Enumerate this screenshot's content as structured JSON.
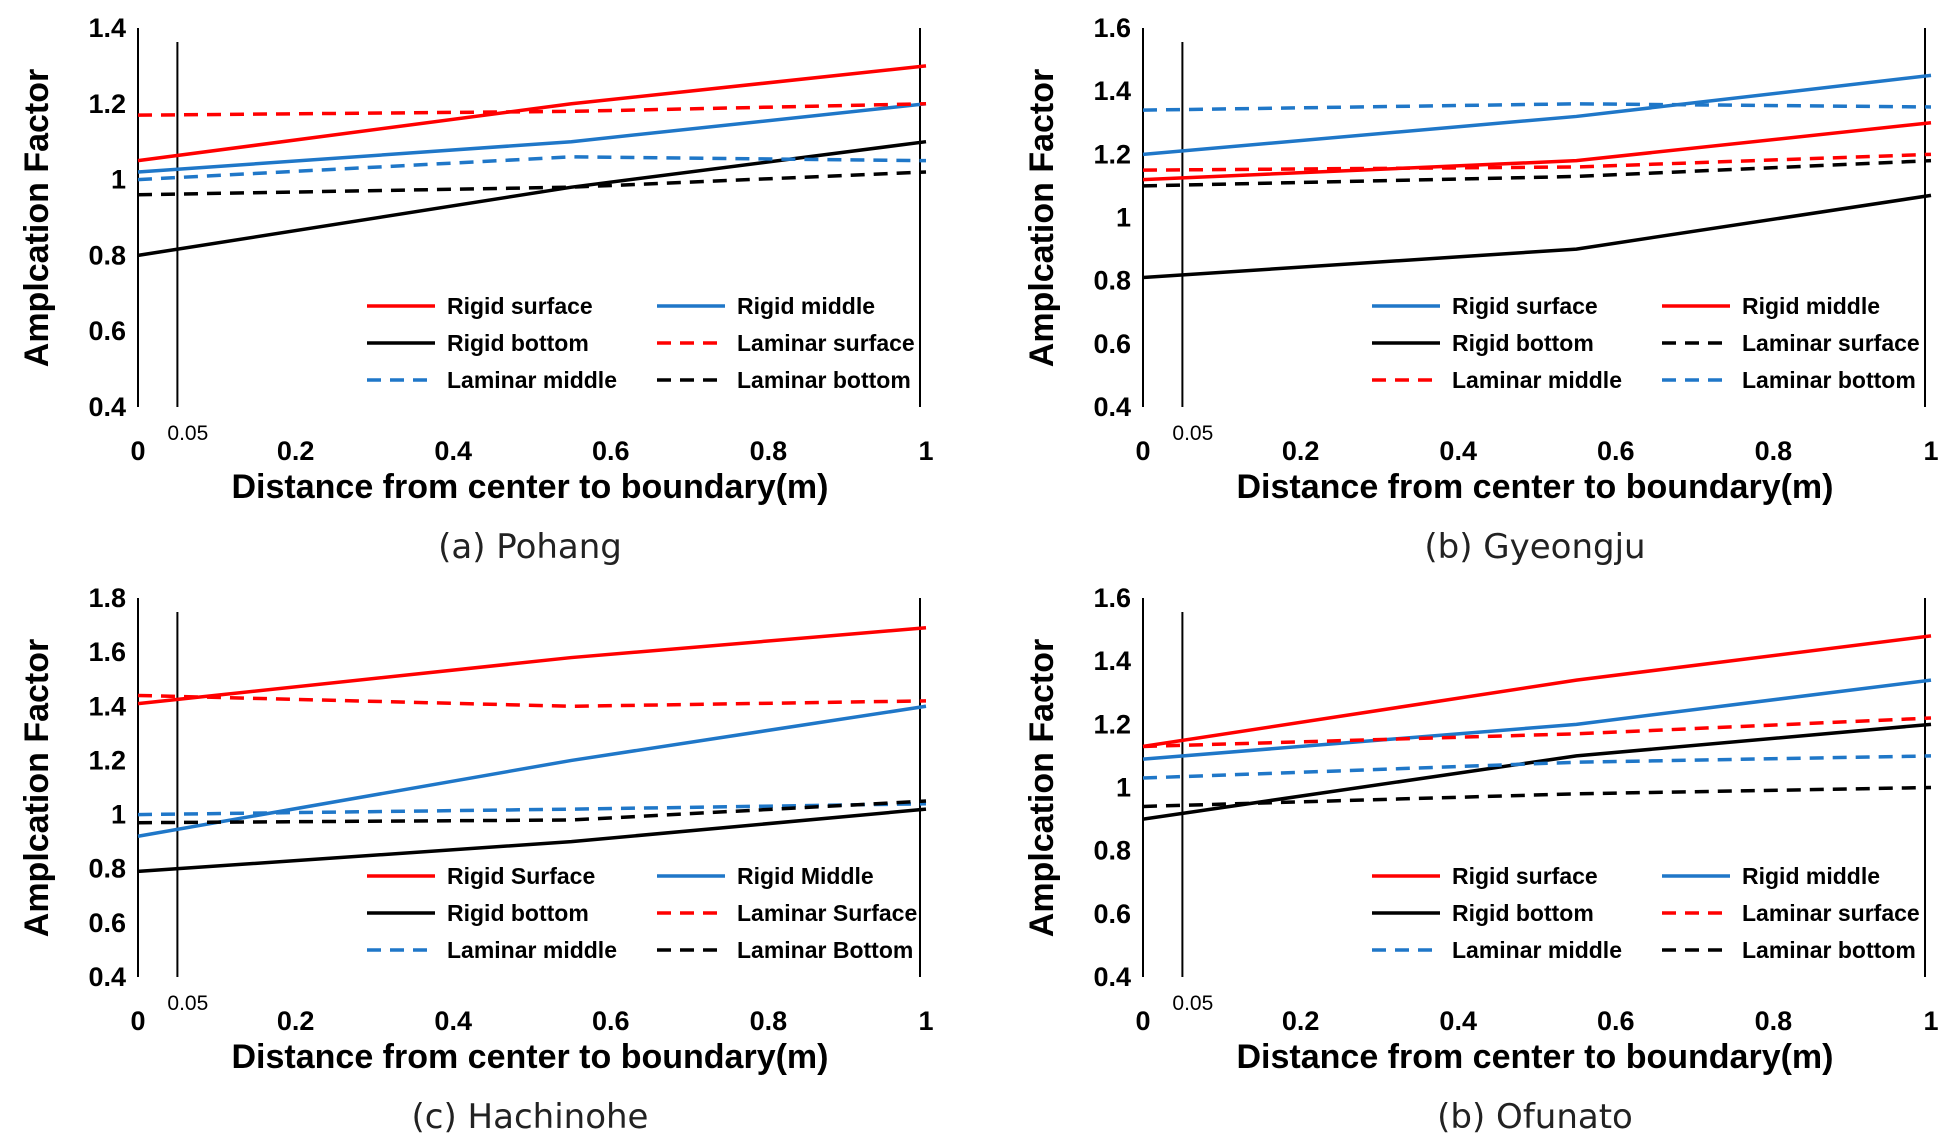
{
  "chart_data": [
    {
      "type": "line",
      "caption": "(a) Pohang",
      "xlabel": "Distance from center to boundary(m)",
      "ylabel": "Amplcation Factor",
      "ylim": [
        0.4,
        1.4
      ],
      "yticks": [
        "0.4",
        "0.6",
        "0.8",
        "1",
        "1.2",
        "1.4"
      ],
      "xlim": [
        0,
        1
      ],
      "xticks": [
        "0",
        "0.2",
        "0.4",
        "0.6",
        "0.8",
        "1"
      ],
      "ref_line": {
        "x": 0.05,
        "label": "0.05"
      },
      "series": [
        {
          "name": "Rigid surface",
          "color": "#ff0000",
          "dash": "solid",
          "x": [
            0,
            0.55,
            1
          ],
          "y": [
            1.05,
            1.2,
            1.3
          ]
        },
        {
          "name": "Rigid middle",
          "color": "#1f77c8",
          "dash": "solid",
          "x": [
            0,
            0.55,
            1
          ],
          "y": [
            1.02,
            1.1,
            1.2
          ]
        },
        {
          "name": "Rigid bottom",
          "color": "#000000",
          "dash": "solid",
          "x": [
            0,
            0.55,
            1
          ],
          "y": [
            0.8,
            0.98,
            1.1
          ]
        },
        {
          "name": "Laminar surface",
          "color": "#ff0000",
          "dash": "dashed",
          "x": [
            0,
            0.55,
            1
          ],
          "y": [
            1.17,
            1.18,
            1.2
          ]
        },
        {
          "name": "Laminar middle",
          "color": "#1f77c8",
          "dash": "dashed",
          "x": [
            0,
            0.55,
            1
          ],
          "y": [
            1.0,
            1.06,
            1.05
          ]
        },
        {
          "name": "Laminar bottom",
          "color": "#000000",
          "dash": "dashed",
          "x": [
            0,
            0.55,
            1
          ],
          "y": [
            0.96,
            0.98,
            1.02
          ]
        }
      ]
    },
    {
      "type": "line",
      "caption": "(b) Gyeongju",
      "xlabel": "Distance from center to boundary(m)",
      "ylabel": "Amplcation Factor",
      "ylim": [
        0.4,
        1.6
      ],
      "yticks": [
        "0.4",
        "0.6",
        "0.8",
        "1",
        "1.2",
        "1.4",
        "1.6"
      ],
      "xlim": [
        0,
        1
      ],
      "xticks": [
        "0",
        "0.2",
        "0.4",
        "0.6",
        "0.8",
        "1"
      ],
      "ref_line": {
        "x": 0.05,
        "label": "0.05"
      },
      "series": [
        {
          "name": "Rigid surface",
          "color": "#1f77c8",
          "dash": "solid",
          "x": [
            0,
            0.55,
            1
          ],
          "y": [
            1.2,
            1.32,
            1.45
          ]
        },
        {
          "name": "Rigid middle",
          "color": "#ff0000",
          "dash": "solid",
          "x": [
            0,
            0.55,
            1
          ],
          "y": [
            1.12,
            1.18,
            1.3
          ]
        },
        {
          "name": "Rigid bottom",
          "color": "#000000",
          "dash": "solid",
          "x": [
            0,
            0.55,
            1
          ],
          "y": [
            0.81,
            0.9,
            1.07
          ]
        },
        {
          "name": "Laminar surface",
          "color": "#000000",
          "dash": "dashed",
          "x": [
            0,
            0.55,
            1
          ],
          "y": [
            1.1,
            1.13,
            1.18
          ]
        },
        {
          "name": "Laminar middle",
          "color": "#ff0000",
          "dash": "dashed",
          "x": [
            0,
            0.55,
            1
          ],
          "y": [
            1.15,
            1.16,
            1.2
          ]
        },
        {
          "name": "Laminar bottom",
          "color": "#1f77c8",
          "dash": "dashed",
          "x": [
            0,
            0.55,
            1
          ],
          "y": [
            1.34,
            1.36,
            1.35
          ]
        }
      ]
    },
    {
      "type": "line",
      "caption": "(c) Hachinohe",
      "xlabel": "Distance from center to boundary(m)",
      "ylabel": "Amplcation Factor",
      "ylim": [
        0.4,
        1.8
      ],
      "yticks": [
        "0.4",
        "0.6",
        "0.8",
        "1",
        "1.2",
        "1.4",
        "1.6",
        "1.8"
      ],
      "xlim": [
        0,
        1
      ],
      "xticks": [
        "0",
        "0.2",
        "0.4",
        "0.6",
        "0.8",
        "1"
      ],
      "ref_line": {
        "x": 0.05,
        "label": "0.05"
      },
      "series": [
        {
          "name": "Rigid Surface",
          "color": "#ff0000",
          "dash": "solid",
          "x": [
            0,
            0.55,
            1
          ],
          "y": [
            1.41,
            1.58,
            1.69
          ]
        },
        {
          "name": "Rigid Middle",
          "color": "#1f77c8",
          "dash": "solid",
          "x": [
            0,
            0.55,
            1
          ],
          "y": [
            0.92,
            1.2,
            1.4
          ]
        },
        {
          "name": "Rigid bottom",
          "color": "#000000",
          "dash": "solid",
          "x": [
            0,
            0.55,
            1
          ],
          "y": [
            0.79,
            0.9,
            1.02
          ]
        },
        {
          "name": "Laminar Surface",
          "color": "#ff0000",
          "dash": "dashed",
          "x": [
            0,
            0.55,
            1
          ],
          "y": [
            1.44,
            1.4,
            1.42
          ]
        },
        {
          "name": "Laminar middle",
          "color": "#1f77c8",
          "dash": "dashed",
          "x": [
            0,
            0.55,
            1
          ],
          "y": [
            1.0,
            1.02,
            1.04
          ]
        },
        {
          "name": "Laminar Bottom",
          "color": "#000000",
          "dash": "dashed",
          "x": [
            0,
            0.55,
            1
          ],
          "y": [
            0.97,
            0.98,
            1.05
          ]
        }
      ]
    },
    {
      "type": "line",
      "caption": "(b) Ofunato",
      "xlabel": "Distance from center to boundary(m)",
      "ylabel": "Amplcation Factor",
      "ylim": [
        0.4,
        1.6
      ],
      "yticks": [
        "0.4",
        "0.6",
        "0.8",
        "1",
        "1.2",
        "1.4",
        "1.6"
      ],
      "xlim": [
        0,
        1
      ],
      "xticks": [
        "0",
        "0.2",
        "0.4",
        "0.6",
        "0.8",
        "1"
      ],
      "ref_line": {
        "x": 0.05,
        "label": "0.05"
      },
      "series": [
        {
          "name": "Rigid surface",
          "color": "#ff0000",
          "dash": "solid",
          "x": [
            0,
            0.55,
            1
          ],
          "y": [
            1.13,
            1.34,
            1.48
          ]
        },
        {
          "name": "Rigid middle",
          "color": "#1f77c8",
          "dash": "solid",
          "x": [
            0,
            0.55,
            1
          ],
          "y": [
            1.09,
            1.2,
            1.34
          ]
        },
        {
          "name": "Rigid bottom",
          "color": "#000000",
          "dash": "solid",
          "x": [
            0,
            0.55,
            1
          ],
          "y": [
            0.9,
            1.1,
            1.2
          ]
        },
        {
          "name": "Laminar surface",
          "color": "#ff0000",
          "dash": "dashed",
          "x": [
            0,
            0.55,
            1
          ],
          "y": [
            1.13,
            1.17,
            1.22
          ]
        },
        {
          "name": "Laminar middle",
          "color": "#1f77c8",
          "dash": "dashed",
          "x": [
            0,
            0.55,
            1
          ],
          "y": [
            1.03,
            1.08,
            1.1
          ]
        },
        {
          "name": "Laminar bottom",
          "color": "#000000",
          "dash": "dashed",
          "x": [
            0,
            0.55,
            1
          ],
          "y": [
            0.94,
            0.98,
            1.0
          ]
        }
      ]
    }
  ]
}
